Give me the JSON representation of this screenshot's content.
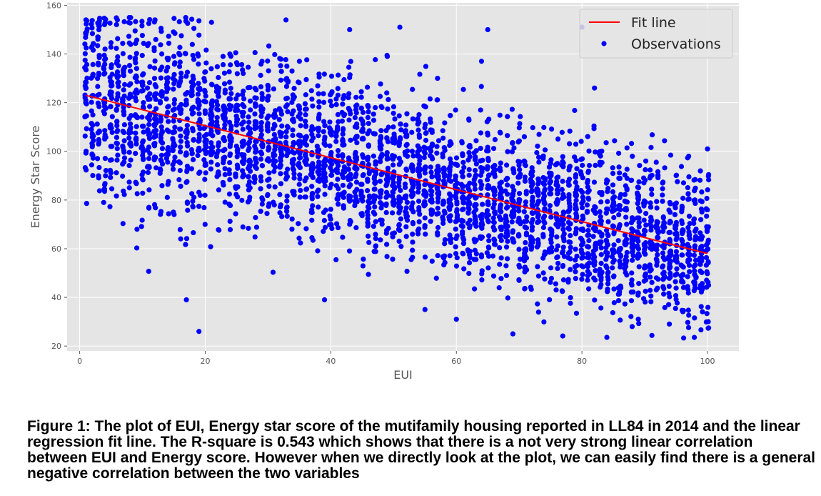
{
  "chart_data": {
    "type": "scatter",
    "xlabel": "EUI",
    "ylabel": "Energy Star Score",
    "xlim": [
      -2,
      105
    ],
    "ylim": [
      18,
      161
    ],
    "xticks": [
      0,
      20,
      40,
      60,
      80,
      100
    ],
    "yticks": [
      20,
      40,
      60,
      80,
      100,
      120,
      140,
      160
    ],
    "grid": true,
    "legend": {
      "placement": "top-right",
      "entries": [
        "Fit line",
        "Observations"
      ]
    },
    "series": [
      {
        "name": "Fit line",
        "kind": "line",
        "color": "#ff0000",
        "x": [
          1,
          100
        ],
        "y": [
          123,
          58
        ]
      },
      {
        "name": "Observations",
        "kind": "scatter",
        "color": "#0000ff",
        "generator": {
          "x_range": [
            1,
            100
          ],
          "intercept": 123,
          "slope": -0.657,
          "count_per_x": 36,
          "y_floor": 23,
          "y_cap": 155
        },
        "outliers": [
          {
            "x": 19,
            "y": 26
          },
          {
            "x": 17,
            "y": 39
          },
          {
            "x": 21,
            "y": 153
          },
          {
            "x": 43,
            "y": 150
          },
          {
            "x": 51,
            "y": 151
          },
          {
            "x": 65,
            "y": 150
          },
          {
            "x": 80,
            "y": 151
          },
          {
            "x": 82,
            "y": 126
          },
          {
            "x": 49,
            "y": 139
          },
          {
            "x": 64,
            "y": 137
          },
          {
            "x": 33,
            "y": 135
          },
          {
            "x": 39,
            "y": 39
          },
          {
            "x": 60,
            "y": 31
          },
          {
            "x": 69,
            "y": 25
          },
          {
            "x": 88,
            "y": 28
          },
          {
            "x": 100,
            "y": 101
          },
          {
            "x": 97,
            "y": 98
          },
          {
            "x": 1,
            "y": 154
          },
          {
            "x": 6,
            "y": 154
          },
          {
            "x": 12,
            "y": 154
          },
          {
            "x": 55,
            "y": 35
          },
          {
            "x": 35,
            "y": 137
          },
          {
            "x": 57,
            "y": 130
          }
        ]
      }
    ]
  },
  "caption": "Figure 1: The plot of EUI, Energy star score of the mutifamily housing reported in LL84 in 2014 and the linear regression fit line. The R-square is 0.543 which shows that there is a not very strong linear correlation between EUI and Energy score. However when we directly look at the plot, we can easily find there is a general negative correlation between the two variables",
  "colors": {
    "plot_bg": "#e5e5e5",
    "grid": "#ffffff",
    "points": "#0000ff",
    "fit": "#ff0000"
  }
}
